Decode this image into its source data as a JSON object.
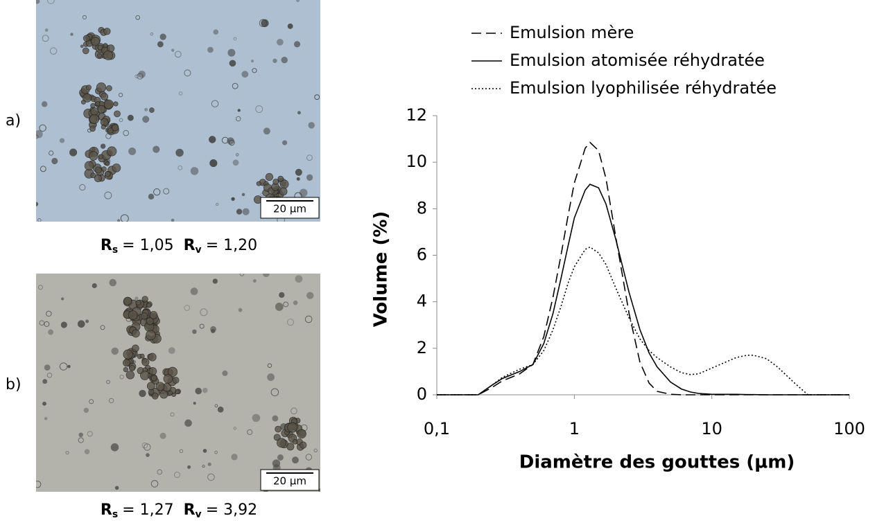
{
  "chart_data": {
    "type": "line",
    "log_x": true,
    "grid": false,
    "legend_position": "top",
    "ylabel": "Volume (%)",
    "xlabel": "Diamètre des gouttes (µm)",
    "xlim": [
      0.1,
      100
    ],
    "xticks": [
      {
        "value": 0.1,
        "label": "0,1"
      },
      1,
      10,
      100
    ],
    "ylim": [
      0,
      12
    ],
    "yticks": [
      0,
      2,
      4,
      6,
      8,
      10,
      12
    ],
    "x": [
      0.1,
      0.2,
      0.25,
      0.3,
      0.4,
      0.5,
      0.6,
      0.7,
      0.8,
      0.9,
      1,
      1.2,
      1.3,
      1.5,
      1.7,
      2,
      2.5,
      3,
      3.5,
      4,
      5,
      6,
      7,
      8,
      10,
      15,
      18,
      20,
      25,
      30,
      40,
      50,
      60,
      100
    ],
    "series": [
      {
        "name": "Emulsion mère",
        "color": "#000000",
        "dash": "14,7",
        "values": [
          0,
          0,
          0.3,
          0.6,
          0.9,
          1.3,
          2.5,
          4.2,
          6.0,
          7.7,
          9.1,
          10.6,
          10.85,
          10.5,
          9.3,
          6.8,
          3.5,
          1.4,
          0.5,
          0.15,
          0.02,
          0,
          0,
          0,
          0,
          0,
          0,
          0,
          0,
          0,
          0,
          0,
          0,
          0
        ]
      },
      {
        "name": "Emulsion atomisée réhydratée",
        "color": "#000000",
        "dash": "none",
        "values": [
          0,
          0,
          0.4,
          0.7,
          1.0,
          1.3,
          2.2,
          3.5,
          5.0,
          6.4,
          7.6,
          8.8,
          9.05,
          8.9,
          8.2,
          6.7,
          4.4,
          2.8,
          1.8,
          1.2,
          0.55,
          0.25,
          0.12,
          0.06,
          0.02,
          0.02,
          0.01,
          0.01,
          0,
          0,
          0,
          0,
          0,
          0
        ]
      },
      {
        "name": "Emulsion lyophilisée réhydratée",
        "color": "#000000",
        "dash": "2,3",
        "values": [
          0,
          0,
          0.4,
          0.75,
          1.1,
          1.3,
          1.9,
          2.8,
          3.8,
          4.8,
          5.5,
          6.25,
          6.35,
          6.1,
          5.6,
          4.6,
          3.3,
          2.4,
          1.9,
          1.6,
          1.2,
          0.95,
          0.87,
          0.9,
          1.15,
          1.6,
          1.7,
          1.7,
          1.55,
          1.2,
          0.5,
          0,
          0,
          0
        ]
      }
    ]
  },
  "panels": [
    {
      "label": "a)",
      "scale_bar": "20 µm",
      "caption": {
        "symbol_s": "R",
        "sub_s": "s",
        "value_s": "= 1,05",
        "symbol_v": "R",
        "sub_v": "v",
        "value_v": "= 1,20"
      }
    },
    {
      "label": "b)",
      "scale_bar": "20 µm",
      "caption": {
        "symbol_s": "R",
        "sub_s": "s",
        "value_s": "= 1,27",
        "symbol_v": "R",
        "sub_v": "v",
        "value_v": "= 3,92"
      }
    }
  ]
}
